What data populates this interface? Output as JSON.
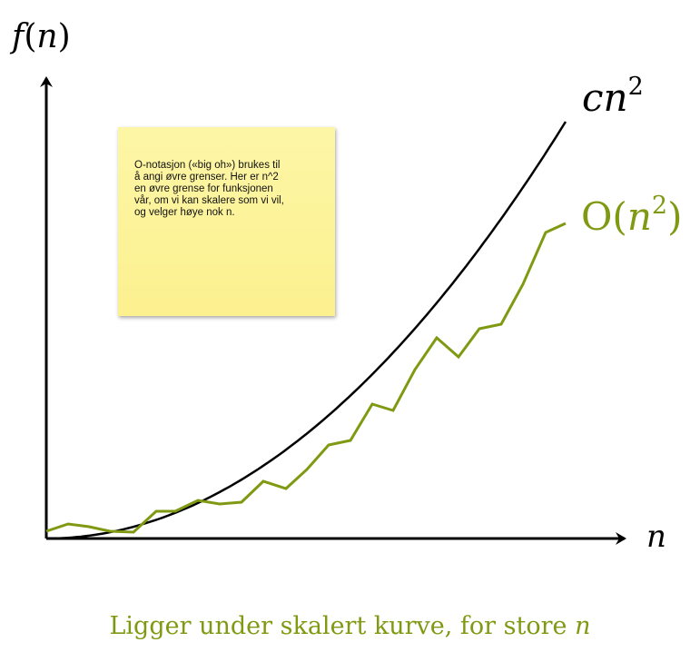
{
  "axes": {
    "y_label": "f(n)",
    "x_label": "n"
  },
  "curves": {
    "parabola_label": "cn",
    "parabola_exp": "2",
    "bound_label_pre": "O(",
    "bound_label_var": "n",
    "bound_label_exp": "2",
    "bound_label_post": ")",
    "colors": {
      "parabola": "#000000",
      "bound": "#7f9a12"
    }
  },
  "note": {
    "text": "O-notasjon («big oh») brukes til\nå angi øvre grenser. Her er n^2\nen øvre grense for funksjonen\nvår, om vi kan skalere som vi vil,\nog velger høye nok n."
  },
  "caption": {
    "text": "Ligger under skalert kurve, for store ",
    "var": "n"
  }
}
